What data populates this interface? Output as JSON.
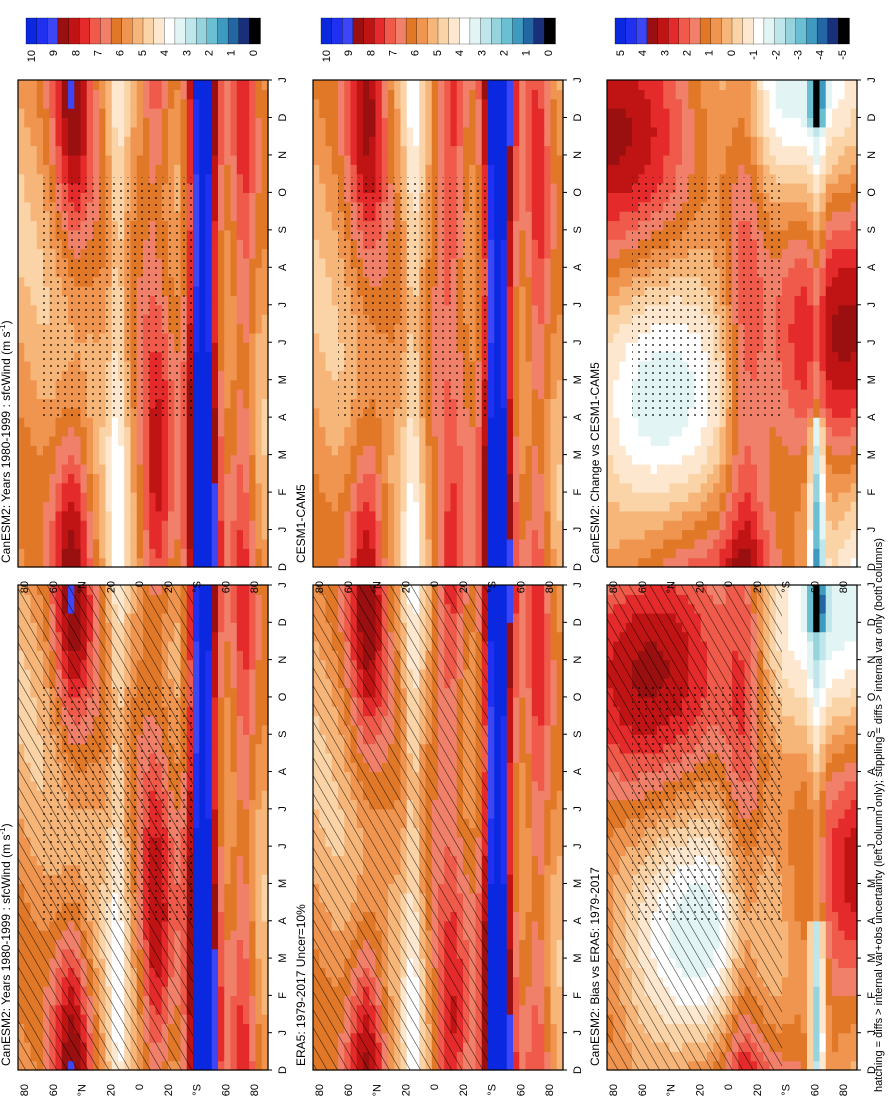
{
  "figure": {
    "footnote": "hatching = diffs > internal var+obs uncertainty (left column only); stippling = diffs > internal var only (both columns)"
  },
  "colors": {
    "abs_scale": [
      "#0a28e0",
      "#2030f0",
      "#3c46f5",
      "#9a0f0f",
      "#c01414",
      "#e42a2a",
      "#ef5a4a",
      "#f0806a",
      "#e07828",
      "#f09550",
      "#f7b679",
      "#fad3a6",
      "#fde8cf",
      "#ffffff",
      "#e2f5f4",
      "#bfe6ea",
      "#96d3dc",
      "#6bbfd2",
      "#3f9ac0",
      "#2466a3",
      "#1a2f7a",
      "#000000"
    ],
    "diff_scale": [
      "#0a28e0",
      "#2030f0",
      "#3c46f5",
      "#9a0f0f",
      "#c01414",
      "#e42a2a",
      "#ef5a4a",
      "#f0806a",
      "#e07828",
      "#f09550",
      "#f7b679",
      "#fad3a6",
      "#fde8cf",
      "#ffffff",
      "#e2f5f4",
      "#bfe6ea",
      "#96d3dc",
      "#6bbfd2",
      "#3f9ac0",
      "#2466a3",
      "#1a2f7a",
      "#000000"
    ]
  },
  "chart_data": [
    {
      "type": "heatmap",
      "id": "left-top",
      "title": "CanESM2: Years 1980-1999 : sfcWind (m s-1)",
      "title_main": "CanESM2: Years 1980-1999 : sfcWind (m s",
      "title_sup": "-1",
      "title_end": ")",
      "months": [
        "D",
        "J",
        "F",
        "M",
        "A",
        "M",
        "J",
        "J",
        "A",
        "S",
        "O",
        "N",
        "D",
        "J"
      ],
      "lat_ticks": [
        "80",
        "60",
        "°N",
        "20",
        "0",
        "20",
        "°S",
        "60",
        "80"
      ],
      "colorbar": {
        "labels": [
          "10",
          "9",
          "8",
          "7",
          "6",
          "5",
          "4",
          "3",
          "2",
          "1",
          "0"
        ],
        "range": [
          0,
          10
        ]
      },
      "hatching": true,
      "stippling": true
    },
    {
      "type": "heatmap",
      "id": "right-top",
      "title": "CanESM2: Years 1980-1999 : sfcWind (m s-1)",
      "title_main": "CanESM2: Years 1980-1999 : sfcWind (m s",
      "title_sup": "-1",
      "title_end": ")",
      "months": [
        "D",
        "J",
        "F",
        "M",
        "A",
        "M",
        "J",
        "J",
        "A",
        "S",
        "O",
        "N",
        "D",
        "J"
      ],
      "lat_ticks": [
        "80",
        "60",
        "°N",
        "20",
        "0",
        "20",
        "°S",
        "60",
        "80"
      ],
      "colorbar": {
        "labels": [
          "10",
          "9",
          "8",
          "7",
          "6",
          "5",
          "4",
          "3",
          "2",
          "1",
          "0"
        ],
        "range": [
          0,
          10
        ]
      },
      "hatching": false,
      "stippling": true
    },
    {
      "type": "heatmap",
      "id": "left-mid",
      "title": "ERA5: 1979-2017 Uncer=10%",
      "months": [
        "D",
        "J",
        "F",
        "M",
        "A",
        "M",
        "J",
        "J",
        "A",
        "S",
        "O",
        "N",
        "D",
        "J"
      ],
      "lat_ticks": [
        "80",
        "60",
        "°N",
        "20",
        "0",
        "20",
        "°S",
        "60",
        "80"
      ],
      "colorbar": {
        "labels": [
          "10",
          "9",
          "8",
          "7",
          "6",
          "5",
          "4",
          "3",
          "2",
          "1",
          "0"
        ],
        "range": [
          0,
          10
        ]
      },
      "hatching": true,
      "stippling": false
    },
    {
      "type": "heatmap",
      "id": "right-mid",
      "title": "CESM1-CAM5",
      "months": [
        "D",
        "J",
        "F",
        "M",
        "A",
        "M",
        "J",
        "J",
        "A",
        "S",
        "O",
        "N",
        "D",
        "J"
      ],
      "lat_ticks": [
        "80",
        "60",
        "°N",
        "20",
        "0",
        "20",
        "°S",
        "60",
        "80"
      ],
      "colorbar": {
        "labels": [
          "10",
          "9",
          "8",
          "7",
          "6",
          "5",
          "4",
          "3",
          "2",
          "1",
          "0"
        ],
        "range": [
          0,
          10
        ]
      },
      "hatching": false,
      "stippling": true
    },
    {
      "type": "heatmap",
      "id": "left-bot",
      "title": "CanESM2: Bias vs ERA5: 1979-2017",
      "months": [
        "D",
        "J",
        "F",
        "M",
        "A",
        "M",
        "J",
        "J",
        "A",
        "S",
        "O",
        "N",
        "D",
        "J"
      ],
      "lat_ticks": [
        "80",
        "60",
        "°N",
        "20",
        "0",
        "20",
        "°S",
        "60",
        "80"
      ],
      "colorbar": {
        "labels": [
          "5",
          "4",
          "3",
          "2",
          "1",
          "0",
          "-1",
          "-2",
          "-3",
          "-4",
          "-5"
        ],
        "range": [
          -5,
          5
        ]
      },
      "hatching": true,
      "stippling": true
    },
    {
      "type": "heatmap",
      "id": "right-bot",
      "title": "CanESM2: Change vs CESM1-CAM5",
      "months": [
        "D",
        "J",
        "F",
        "M",
        "A",
        "M",
        "J",
        "J",
        "A",
        "S",
        "O",
        "N",
        "D",
        "J"
      ],
      "lat_ticks": [
        "80",
        "60",
        "°N",
        "20",
        "0",
        "20",
        "°S",
        "60",
        "80"
      ],
      "colorbar": {
        "labels": [
          "5",
          "4",
          "3",
          "2",
          "1",
          "0",
          "-1",
          "-2",
          "-3",
          "-4",
          "-5"
        ],
        "range": [
          -5,
          5
        ]
      },
      "hatching": false,
      "stippling": true
    }
  ]
}
